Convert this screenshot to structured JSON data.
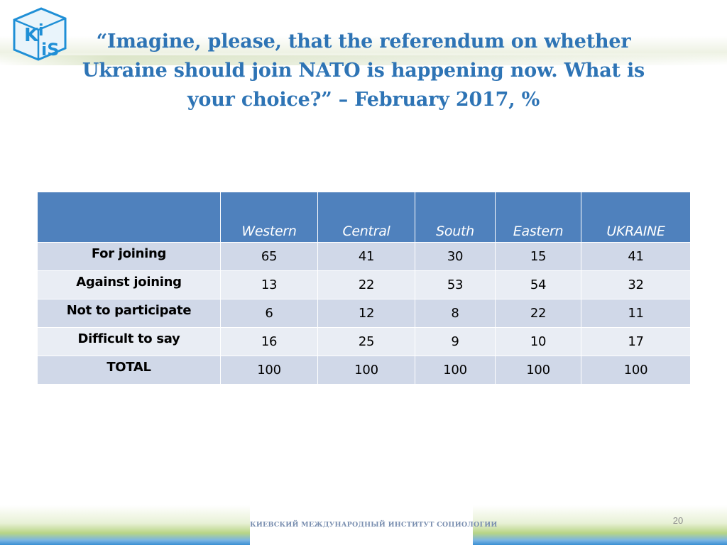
{
  "slide": {
    "title_lines": [
      "“Imagine, please, that the referendum on whether",
      "Ukraine should join  NATO is happening now. What is",
      "your choice?” – February 2017, %"
    ],
    "logo_text": "KiiS",
    "footer": "КИЕВСКИЙ МЕЖДУНАРОДНЫЙ ИНСТИТУТ СОЦИОЛОГИИ",
    "page_number": "20"
  },
  "table": {
    "columns": [
      "",
      "Western",
      "Central",
      "South",
      "Eastern",
      "UKRAINE"
    ],
    "rows": [
      {
        "label": "For joining",
        "values": [
          "65",
          "41",
          "30",
          "15",
          "41"
        ]
      },
      {
        "label": "Against joining",
        "values": [
          "13",
          "22",
          "53",
          "54",
          "32"
        ]
      },
      {
        "label": "Not to participate",
        "values": [
          "6",
          "12",
          "8",
          "22",
          "11"
        ]
      },
      {
        "label": "Difficult to say",
        "values": [
          "16",
          "25",
          "9",
          "10",
          "17"
        ]
      },
      {
        "label": "TOTAL",
        "values": [
          "100",
          "100",
          "100",
          "100",
          "100"
        ]
      }
    ]
  },
  "colors": {
    "title": "#2e74b5",
    "header_bg": "#4f81bd",
    "row_odd_bg": "#d0d8e8",
    "row_even_bg": "#e9edf4",
    "logo_blue": "#1f8fd6"
  }
}
